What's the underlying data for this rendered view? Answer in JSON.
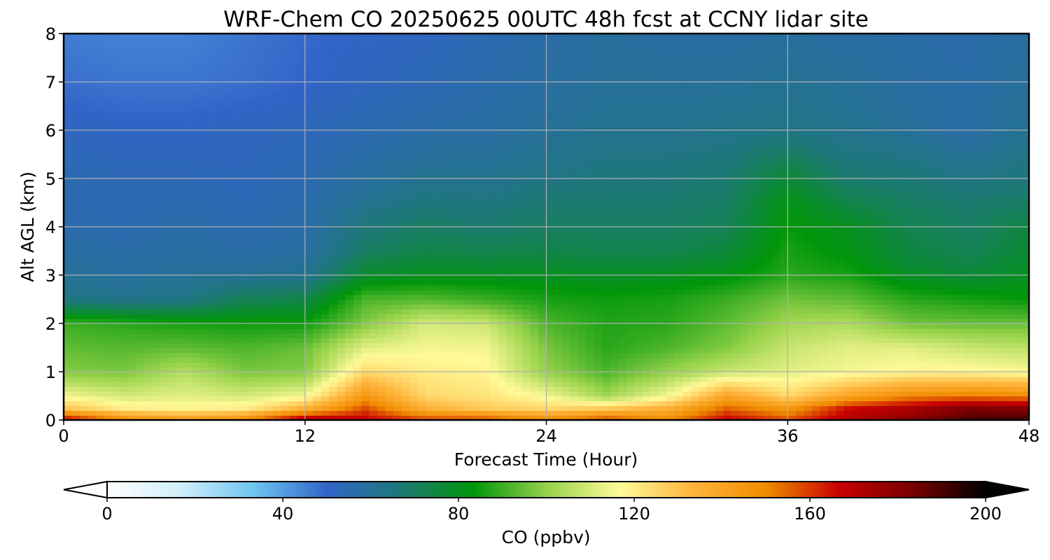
{
  "chart_data": {
    "type": "heatmap",
    "title": "WRF-Chem CO  20250625 00UTC 48h fcst at CCNY lidar site",
    "xlabel": "Forecast Time (Hour)",
    "ylabel": "Alt AGL (km)",
    "xlim": [
      0,
      48
    ],
    "ylim": [
      0,
      8
    ],
    "xticks": [
      0,
      12,
      24,
      36,
      48
    ],
    "yticks": [
      0,
      1,
      2,
      3,
      4,
      5,
      6,
      7,
      8
    ],
    "grid": true,
    "x": [
      0,
      3,
      6,
      9,
      12,
      15,
      18,
      21,
      24,
      27,
      30,
      33,
      36,
      39,
      42,
      45,
      48
    ],
    "y": [
      0,
      0.25,
      0.5,
      1,
      1.5,
      2,
      2.5,
      3,
      3.5,
      4,
      4.5,
      5,
      6,
      7,
      8
    ],
    "z": [
      [
        170,
        150,
        145,
        150,
        175,
        168,
        160,
        160,
        150,
        160,
        150,
        168,
        158,
        172,
        180,
        190,
        192
      ],
      [
        130,
        120,
        118,
        120,
        135,
        158,
        135,
        128,
        125,
        128,
        135,
        155,
        145,
        165,
        172,
        182,
        180
      ],
      [
        115,
        110,
        112,
        110,
        115,
        145,
        125,
        122,
        115,
        102,
        115,
        140,
        125,
        140,
        150,
        152,
        150
      ],
      [
        98,
        97,
        105,
        97,
        98,
        125,
        120,
        118,
        100,
        92,
        100,
        108,
        112,
        115,
        118,
        118,
        116
      ],
      [
        94,
        93,
        94,
        92,
        95,
        112,
        115,
        115,
        97,
        88,
        92,
        98,
        108,
        112,
        112,
        108,
        106
      ],
      [
        90,
        88,
        86,
        85,
        85,
        98,
        110,
        108,
        92,
        87,
        88,
        94,
        102,
        104,
        96,
        95,
        95
      ],
      [
        65,
        63,
        64,
        72,
        74,
        92,
        93,
        90,
        86,
        85,
        86,
        90,
        96,
        94,
        88,
        86,
        84
      ],
      [
        60,
        59,
        60,
        61,
        62,
        78,
        80,
        80,
        80,
        79,
        80,
        82,
        88,
        86,
        79,
        76,
        80
      ],
      [
        58,
        57,
        58,
        57,
        58,
        70,
        74,
        73,
        74,
        73,
        73,
        76,
        86,
        82,
        75,
        72,
        77
      ],
      [
        56,
        55,
        57,
        55,
        57,
        66,
        70,
        68,
        70,
        70,
        70,
        72,
        84,
        80,
        73,
        70,
        75
      ],
      [
        55,
        54,
        55,
        54,
        56,
        62,
        66,
        65,
        68,
        68,
        68,
        70,
        82,
        74,
        70,
        68,
        70
      ],
      [
        55,
        54,
        54,
        53,
        55,
        59,
        62,
        62,
        64,
        66,
        66,
        68,
        77,
        68,
        67,
        64,
        66
      ],
      [
        52,
        51,
        51,
        52,
        53,
        55,
        57,
        58,
        60,
        62,
        62,
        63,
        64,
        62,
        60,
        57,
        62
      ],
      [
        48,
        47,
        47,
        48,
        50,
        52,
        54,
        56,
        58,
        60,
        60,
        60,
        61,
        60,
        58,
        57,
        60
      ],
      [
        46,
        45,
        45,
        47,
        49,
        51,
        52,
        55,
        57,
        59,
        58,
        58,
        59,
        58,
        57,
        56,
        59
      ]
    ],
    "colorbar": {
      "label": "CO  (ppbv)",
      "min": 0,
      "max": 200,
      "ticks": [
        0,
        40,
        80,
        120,
        160,
        200
      ],
      "extend": "both",
      "orientation": "horizontal",
      "position": "bottom",
      "colors": [
        "#ffffff",
        "#d0eefa",
        "#6ec5f0",
        "#3264c8",
        "#1e7878",
        "#00960a",
        "#96d24a",
        "#fffa98",
        "#ffb43c",
        "#f08c00",
        "#c80000",
        "#780000",
        "#000000"
      ]
    }
  }
}
